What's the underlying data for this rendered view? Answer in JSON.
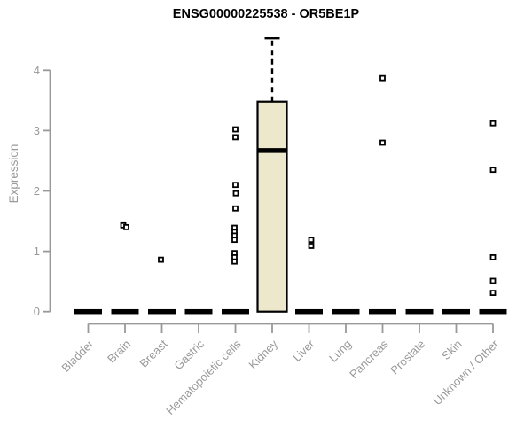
{
  "colors": {
    "axis": "#999999",
    "text": "#999999",
    "title": "#000000",
    "box_fill": "#EDE8CC",
    "box_stroke": "#000000",
    "marker_fill": "#ffffff"
  },
  "chart_data": {
    "type": "boxplot",
    "title": "ENSG00000225538 - OR5BE1P",
    "ylabel": "Expression",
    "xlabel": "",
    "ylim": [
      0,
      4.5
    ],
    "yticks": [
      0,
      1,
      2,
      3,
      4
    ],
    "grid": false,
    "legend": false,
    "categories": [
      "Bladder",
      "Brain",
      "Breast",
      "Gastric",
      "Hematopoietic cells",
      "Kidney",
      "Liver",
      "Lung",
      "Pancreas",
      "Prostate",
      "Skin",
      "Unknown / Other"
    ],
    "boxes": [
      {
        "category": "Bladder",
        "median": 0,
        "q1": 0,
        "q3": 0,
        "whisker_low": 0,
        "whisker_high": 0,
        "outliers": []
      },
      {
        "category": "Brain",
        "median": 0,
        "q1": 0,
        "q3": 0,
        "whisker_low": 0,
        "whisker_high": 0,
        "outliers": [
          [
            1.43,
            -2
          ],
          [
            1.4,
            1.5
          ]
        ]
      },
      {
        "category": "Breast",
        "median": 0,
        "q1": 0,
        "q3": 0,
        "whisker_low": 0,
        "whisker_high": 0,
        "outliers": [
          [
            0.86,
            -1
          ]
        ]
      },
      {
        "category": "Gastric",
        "median": 0,
        "q1": 0,
        "q3": 0,
        "whisker_low": 0,
        "whisker_high": 0,
        "outliers": []
      },
      {
        "category": "Hematopoietic cells",
        "median": 0,
        "q1": 0,
        "q3": 0,
        "whisker_low": 0,
        "whisker_high": 0,
        "outliers": [
          [
            3.02,
            0
          ],
          [
            2.89,
            0
          ],
          [
            2.1,
            0
          ],
          [
            1.96,
            0.5
          ],
          [
            1.71,
            0
          ],
          [
            1.39,
            -1
          ],
          [
            1.32,
            -1
          ],
          [
            1.26,
            -1
          ],
          [
            1.19,
            -1
          ],
          [
            0.97,
            -1
          ],
          [
            0.9,
            -1
          ],
          [
            0.83,
            -1
          ]
        ]
      },
      {
        "category": "Kidney",
        "median": 2.67,
        "q1": 0,
        "q3": 3.48,
        "whisker_low": 0,
        "whisker_high": 4.53,
        "outliers": []
      },
      {
        "category": "Liver",
        "median": 0,
        "q1": 0,
        "q3": 0,
        "whisker_low": 0,
        "whisker_high": 0,
        "outliers": [
          [
            1.19,
            2.5
          ],
          [
            1.09,
            2.5
          ]
        ]
      },
      {
        "category": "Lung",
        "median": 0,
        "q1": 0,
        "q3": 0,
        "whisker_low": 0,
        "whisker_high": 0,
        "outliers": []
      },
      {
        "category": "Pancreas",
        "median": 0,
        "q1": 0,
        "q3": 0,
        "whisker_low": 0,
        "whisker_high": 0,
        "outliers": [
          [
            3.87,
            0
          ],
          [
            2.8,
            0
          ]
        ]
      },
      {
        "category": "Prostate",
        "median": 0,
        "q1": 0,
        "q3": 0,
        "whisker_low": 0,
        "whisker_high": 0,
        "outliers": []
      },
      {
        "category": "Skin",
        "median": 0,
        "q1": 0,
        "q3": 0,
        "whisker_low": 0,
        "whisker_high": 0,
        "outliers": []
      },
      {
        "category": "Unknown / Other",
        "median": 0,
        "q1": 0,
        "q3": 0,
        "whisker_low": 0,
        "whisker_high": 0,
        "outliers": [
          [
            3.12,
            0
          ],
          [
            2.35,
            0
          ],
          [
            0.9,
            0
          ],
          [
            0.51,
            0
          ],
          [
            0.31,
            0
          ]
        ]
      }
    ]
  }
}
